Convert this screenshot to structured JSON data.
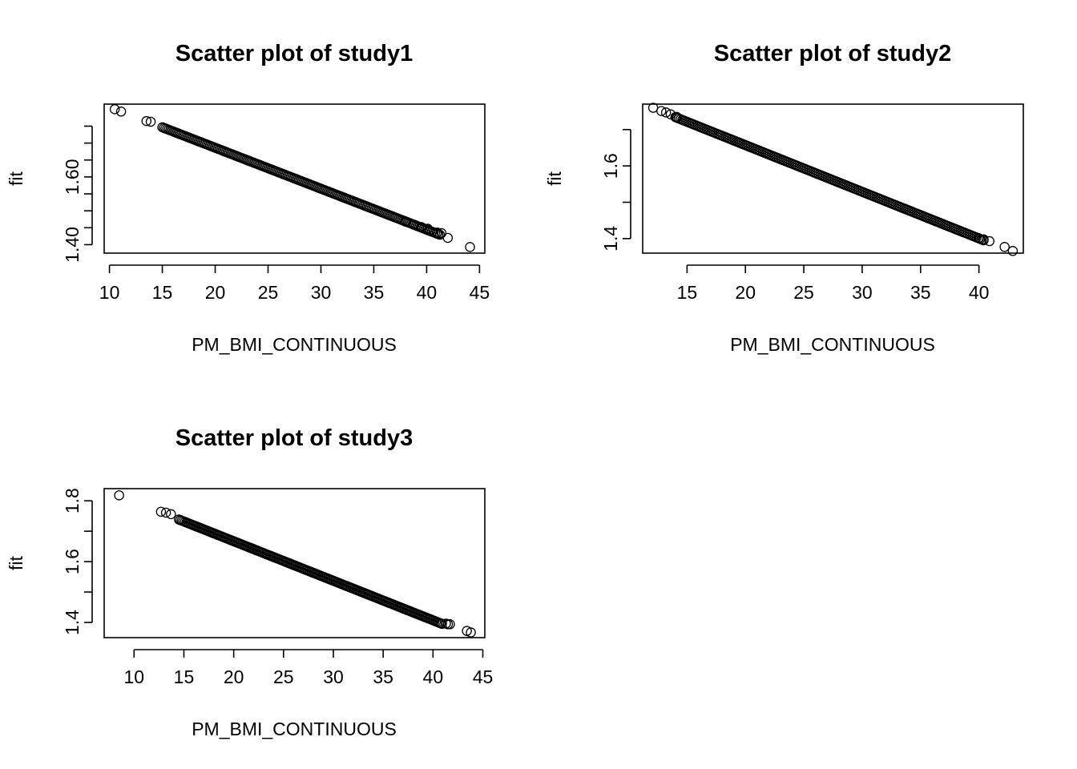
{
  "chart_data": [
    {
      "type": "scatter",
      "title": "Scatter plot of study1",
      "xlabel": "PM_BMI_CONTINUOUS",
      "ylabel": "fit",
      "xlim": [
        9.5,
        45.5
      ],
      "ylim": [
        1.375,
        1.815
      ],
      "xticks": [
        10,
        15,
        20,
        25,
        30,
        35,
        40,
        45
      ],
      "yticks": [
        1.4,
        1.45,
        1.5,
        1.55,
        1.6,
        1.65,
        1.7,
        1.75
      ],
      "ytick_labels": [
        "1.40",
        "",
        "",
        "",
        "1.60",
        "",
        "",
        ""
      ],
      "grid": false,
      "line": {
        "x_from": 15.0,
        "x_to": 41.3,
        "y_at_x0": 1.928,
        "slope": -0.01209,
        "step": 0.15
      },
      "outliers": [
        [
          10.5,
          1.8
        ],
        [
          11.1,
          1.793
        ],
        [
          13.5,
          1.765
        ],
        [
          13.9,
          1.763
        ],
        [
          38.0,
          1.468
        ],
        [
          38.8,
          1.459
        ],
        [
          39.5,
          1.452
        ],
        [
          40.1,
          1.447
        ],
        [
          41.0,
          1.436
        ],
        [
          41.4,
          1.434
        ],
        [
          42.0,
          1.42
        ],
        [
          44.1,
          1.393
        ]
      ]
    },
    {
      "type": "scatter",
      "title": "Scatter plot of study2",
      "xlabel": "PM_BMI_CONTINUOUS",
      "ylabel": "fit",
      "xlim": [
        11.2,
        43.8
      ],
      "ylim": [
        1.36,
        1.77
      ],
      "xticks": [
        15,
        20,
        25,
        30,
        35,
        40
      ],
      "yticks": [
        1.4,
        1.5,
        1.6,
        1.7
      ],
      "ytick_labels": [
        "1.4",
        "",
        "1.6",
        ""
      ],
      "grid": false,
      "line": {
        "x_from": 14.0,
        "x_to": 40.5,
        "y_at_x0": 1.914,
        "slope": -0.01284,
        "step": 0.15
      },
      "outliers": [
        [
          12.1,
          1.76
        ],
        [
          12.8,
          1.751
        ],
        [
          13.2,
          1.747
        ],
        [
          13.6,
          1.742
        ],
        [
          14.1,
          1.735
        ],
        [
          40.0,
          1.401
        ],
        [
          40.4,
          1.398
        ],
        [
          40.9,
          1.393
        ],
        [
          42.2,
          1.377
        ],
        [
          42.9,
          1.366
        ]
      ]
    },
    {
      "type": "scatter",
      "title": "Scatter plot of study3",
      "xlabel": "PM_BMI_CONTINUOUS",
      "ylabel": "fit",
      "xlim": [
        7.0,
        45.2
      ],
      "ylim": [
        1.35,
        1.84
      ],
      "xticks": [
        10,
        15,
        20,
        25,
        30,
        35,
        40,
        45
      ],
      "yticks": [
        1.4,
        1.5,
        1.6,
        1.7,
        1.8
      ],
      "ytick_labels": [
        "1.4",
        "",
        "1.6",
        "",
        "1.8"
      ],
      "grid": false,
      "line": {
        "x_from": 14.5,
        "x_to": 41.0,
        "y_at_x0": 1.927,
        "slope": -0.013,
        "step": 0.15
      },
      "outliers": [
        [
          8.5,
          1.818
        ],
        [
          12.7,
          1.764
        ],
        [
          13.2,
          1.761
        ],
        [
          13.7,
          1.756
        ],
        [
          41.3,
          1.396
        ],
        [
          41.5,
          1.394
        ],
        [
          41.7,
          1.394
        ],
        [
          43.4,
          1.372
        ],
        [
          43.8,
          1.367
        ]
      ]
    }
  ]
}
